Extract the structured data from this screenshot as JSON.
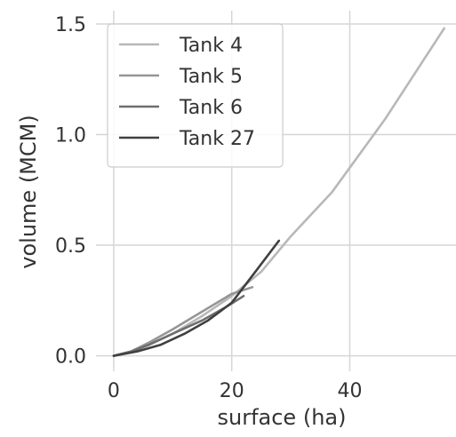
{
  "chart_data": {
    "type": "line",
    "xlabel": "surface (ha)",
    "ylabel": "volume (MCM)",
    "xlim": [
      -3,
      58
    ],
    "ylim": [
      -0.07,
      1.56
    ],
    "xticks": [
      0,
      20,
      40
    ],
    "xtick_labels": [
      "0",
      "20",
      "40"
    ],
    "yticks": [
      0.0,
      0.5,
      1.0,
      1.5
    ],
    "ytick_labels": [
      "0.0",
      "0.5",
      "1.0",
      "1.5"
    ],
    "grid": true,
    "legend_position": "top-left",
    "series": [
      {
        "name": "Tank 4",
        "color": "#b8b8b8",
        "x": [
          0,
          3,
          6,
          10,
          15,
          20,
          25,
          30,
          37,
          46,
          56
        ],
        "y": [
          0,
          0.02,
          0.05,
          0.1,
          0.18,
          0.27,
          0.38,
          0.54,
          0.74,
          1.07,
          1.48
        ]
      },
      {
        "name": "Tank 5",
        "color": "#969696",
        "x": [
          0,
          3,
          6,
          10,
          15,
          20,
          23.5
        ],
        "y": [
          0,
          0.02,
          0.06,
          0.12,
          0.2,
          0.28,
          0.31
        ]
      },
      {
        "name": "Tank 6",
        "color": "#6e6e6e",
        "x": [
          0,
          3,
          6,
          10,
          15,
          19,
          22
        ],
        "y": [
          0,
          0.02,
          0.05,
          0.1,
          0.16,
          0.22,
          0.27
        ]
      },
      {
        "name": "Tank 27",
        "color": "#404040",
        "x": [
          0,
          4,
          8,
          12,
          16,
          20,
          24,
          28
        ],
        "y": [
          0,
          0.02,
          0.05,
          0.1,
          0.16,
          0.24,
          0.38,
          0.52
        ]
      }
    ]
  }
}
